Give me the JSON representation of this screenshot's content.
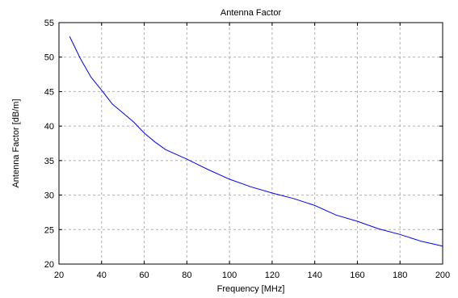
{
  "chart_data": {
    "type": "line",
    "title": "Antenna Factor",
    "xlabel": "Frequency [MHz]",
    "ylabel": "Antenna Factor [dB/m]",
    "xlim": [
      20,
      200
    ],
    "ylim": [
      20,
      55
    ],
    "xticks": [
      20,
      40,
      60,
      80,
      100,
      120,
      140,
      160,
      180,
      200
    ],
    "yticks": [
      20,
      25,
      30,
      35,
      40,
      45,
      50,
      55
    ],
    "xtick_labels": [
      "20",
      "40",
      "60",
      "80",
      "100",
      "120",
      "140",
      "160",
      "180",
      "200"
    ],
    "ytick_labels": [
      "20",
      "25",
      "30",
      "35",
      "40",
      "45",
      "50",
      "55"
    ],
    "grid": true,
    "series": [
      {
        "color": "#0000ff",
        "x": [
          25,
          30,
          35,
          40,
          45,
          50,
          55,
          60,
          65,
          70,
          80,
          90,
          100,
          110,
          120,
          130,
          140,
          150,
          160,
          170,
          180,
          190,
          200
        ],
        "y": [
          53.0,
          49.8,
          47.1,
          45.2,
          43.2,
          41.9,
          40.6,
          39.0,
          37.7,
          36.6,
          35.2,
          33.7,
          32.3,
          31.2,
          30.3,
          29.5,
          28.5,
          27.1,
          26.2,
          25.1,
          24.3,
          23.3,
          22.6
        ]
      }
    ]
  }
}
